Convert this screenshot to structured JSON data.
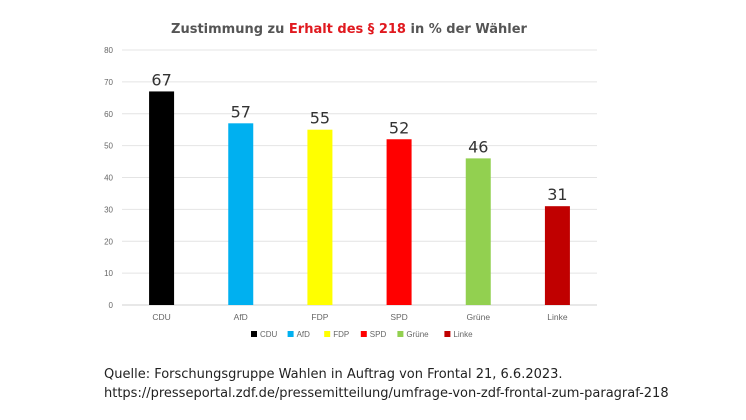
{
  "chart_data": {
    "type": "bar",
    "title_parts": {
      "pre": "Zustimmung zu ",
      "highlight": "Erhalt des § 218",
      "post": " in % der  Wähler"
    },
    "categories": [
      "CDU",
      "AfD",
      "FDP",
      "SPD",
      "Grüne",
      "Linke"
    ],
    "values": [
      67,
      57,
      55,
      52,
      46,
      31
    ],
    "colors": [
      "#000000",
      "#00b0f0",
      "#ffff00",
      "#ff0000",
      "#92d050",
      "#c00000"
    ],
    "highlight_color": "#e0191f",
    "ylim": [
      0,
      80
    ],
    "yticks": [
      0,
      10,
      20,
      30,
      40,
      50,
      60,
      70,
      80
    ],
    "grid": true,
    "legend": "bottom",
    "data_labels": true
  },
  "source": {
    "line1": "Quelle: Forschungsgruppe Wahlen in Auftrag von Frontal 21, 6.6.2023.",
    "line2": "https://presseportal.zdf.de/pressemitteilung/umfrage-von-zdf-frontal-zum-paragraf-218"
  }
}
